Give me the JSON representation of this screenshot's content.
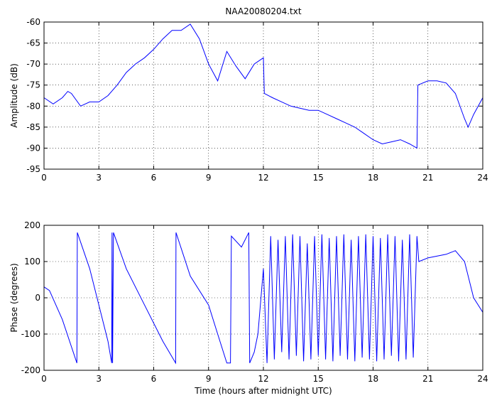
{
  "chart_data": [
    {
      "type": "line",
      "title": "NAA20080204.txt",
      "ylabel": "Amplitude (dB)",
      "color": "#0000ff",
      "grid": true,
      "xlim": [
        0,
        24
      ],
      "xticks": [
        0,
        3,
        6,
        9,
        12,
        15,
        18,
        21,
        24
      ],
      "ylim": [
        -95,
        -60
      ],
      "yticks": [
        -95,
        -90,
        -85,
        -80,
        -75,
        -70,
        -65,
        -60
      ],
      "x": [
        0,
        0.5,
        1,
        1.3,
        1.5,
        2,
        2.5,
        3,
        3.5,
        4,
        4.5,
        5,
        5.5,
        6,
        6.5,
        7,
        7.5,
        8,
        8.5,
        9,
        9.5,
        10,
        10.5,
        11,
        11.5,
        12,
        12.05,
        12.5,
        13,
        13.5,
        14,
        14.5,
        15,
        15.5,
        16,
        16.5,
        17,
        17.5,
        18,
        18.5,
        19,
        19.5,
        20,
        20.4,
        20.45,
        21,
        21.5,
        22,
        22.5,
        23,
        23.2,
        23.5,
        24
      ],
      "values": [
        -78,
        -79.5,
        -78,
        -76.5,
        -77,
        -80,
        -79,
        -79,
        -77.5,
        -75,
        -72,
        -70,
        -68.5,
        -66.5,
        -64,
        -62,
        -62,
        -60.5,
        -64,
        -70,
        -74,
        -67,
        -70.5,
        -73.5,
        -70,
        -68.5,
        -77,
        -78,
        -79,
        -80,
        -80.5,
        -81,
        -81,
        -82,
        -83,
        -84,
        -85,
        -86.5,
        -88,
        -89,
        -88.5,
        -88,
        -89,
        -90,
        -75,
        -74,
        -74,
        -74.5,
        -77,
        -83,
        -85,
        -82,
        -78
      ]
    },
    {
      "type": "line",
      "xlabel": "Time (hours after midnight UTC)",
      "ylabel": "Phase (degrees)",
      "color": "#0000ff",
      "grid": true,
      "xlim": [
        0,
        24
      ],
      "xticks": [
        0,
        3,
        6,
        9,
        12,
        15,
        18,
        21,
        24
      ],
      "ylim": [
        -200,
        200
      ],
      "yticks": [
        -200,
        -100,
        0,
        100,
        200
      ],
      "x": [
        0,
        0.3,
        1,
        1.8,
        1.82,
        2.5,
        3.5,
        3.7,
        3.72,
        3.75,
        3.8,
        4.5,
        5.5,
        6.5,
        7.2,
        7.22,
        8,
        9,
        9.5,
        10,
        10.2,
        10.25,
        10.8,
        11.2,
        11.25,
        11.5,
        11.7,
        12,
        12.2,
        12.4,
        12.6,
        12.8,
        13,
        13.2,
        13.4,
        13.6,
        13.8,
        14,
        14.2,
        14.4,
        14.6,
        14.8,
        15,
        15.2,
        15.4,
        15.6,
        15.8,
        16,
        16.2,
        16.4,
        16.6,
        16.8,
        17,
        17.2,
        17.4,
        17.6,
        17.8,
        18,
        18.2,
        18.4,
        18.6,
        18.8,
        19,
        19.2,
        19.4,
        19.6,
        19.8,
        20,
        20.2,
        20.4,
        20.5,
        21,
        22,
        22.5,
        23,
        23.5,
        24
      ],
      "values": [
        30,
        20,
        -60,
        -180,
        180,
        80,
        -120,
        -180,
        180,
        -180,
        180,
        80,
        -20,
        -120,
        -180,
        180,
        60,
        -20,
        -100,
        -180,
        -180,
        170,
        140,
        180,
        -180,
        -150,
        -100,
        80,
        -180,
        170,
        -170,
        160,
        -150,
        170,
        -170,
        175,
        -160,
        170,
        -175,
        150,
        -170,
        170,
        -160,
        175,
        -170,
        165,
        -175,
        170,
        -160,
        175,
        -170,
        160,
        -175,
        170,
        -165,
        175,
        -170,
        170,
        -175,
        165,
        -170,
        175,
        -160,
        170,
        -175,
        160,
        -170,
        175,
        -165,
        170,
        100,
        110,
        120,
        130,
        100,
        0,
        -40
      ]
    }
  ]
}
